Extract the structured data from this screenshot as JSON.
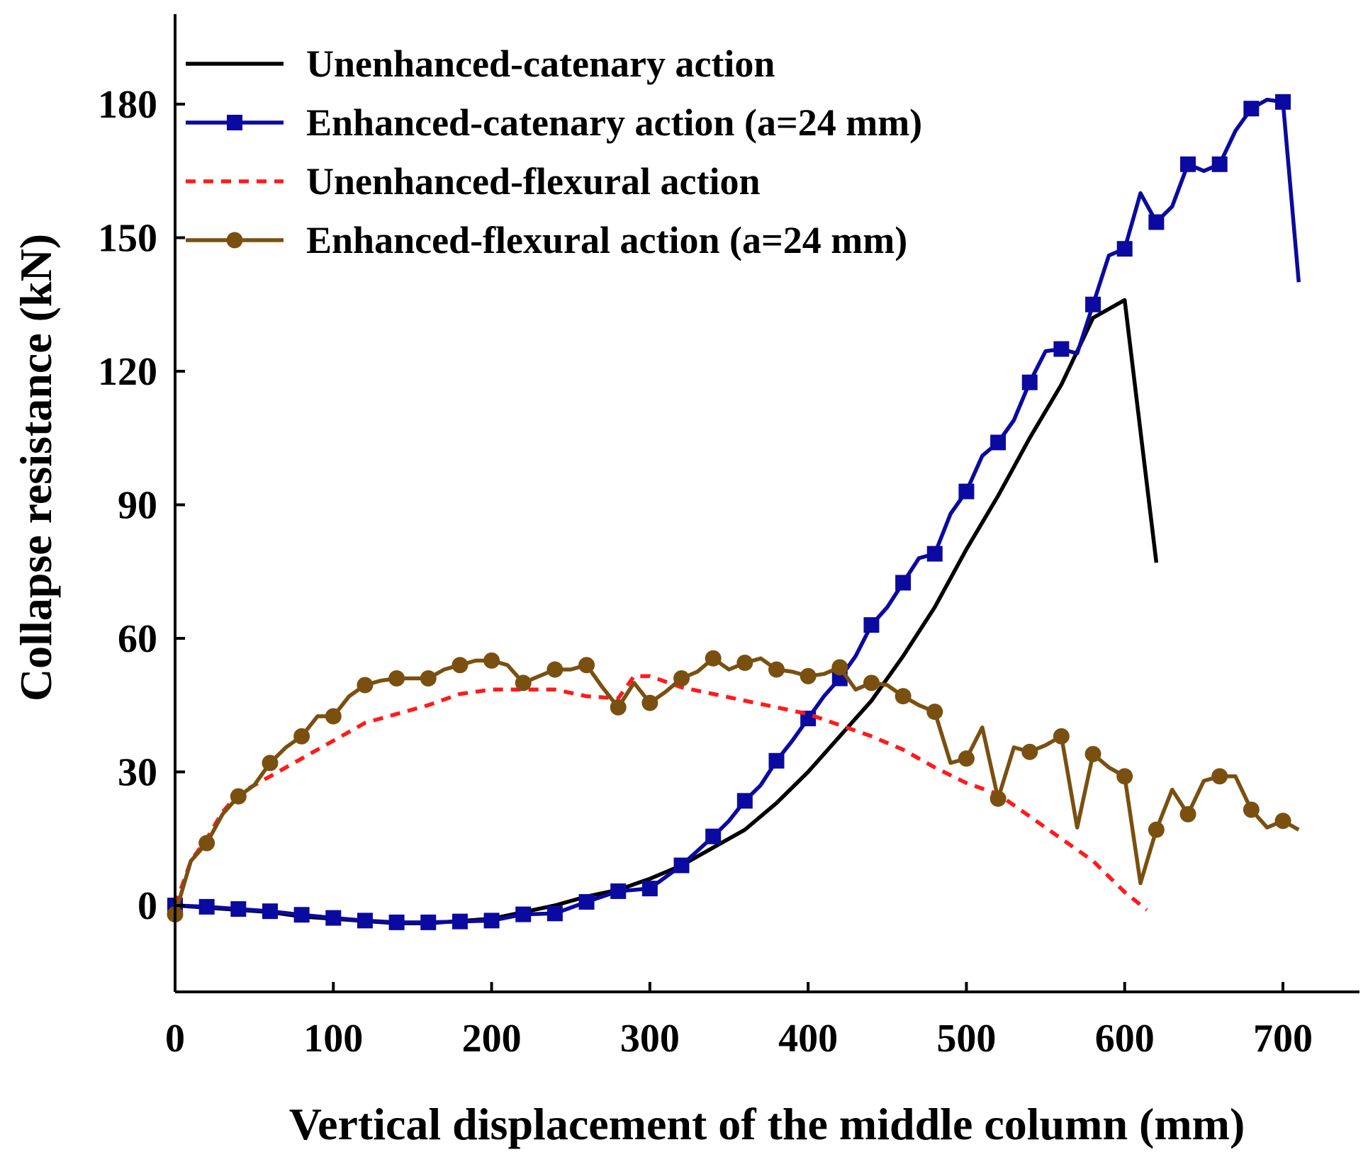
{
  "chart_data": {
    "type": "line",
    "title": "",
    "xlabel": "Vertical displacement of the middle column (mm)",
    "ylabel": "Collapse resistance (kN)",
    "xlim": [
      0,
      750
    ],
    "ylim": [
      -20,
      200
    ],
    "xticks": [
      0,
      100,
      200,
      300,
      400,
      500,
      600,
      700
    ],
    "yticks": [
      0,
      30,
      60,
      90,
      120,
      150,
      180
    ],
    "legend_position": "top-left",
    "series": [
      {
        "name": "Unenhanced-catenary action",
        "color": "#000000",
        "style": "solid",
        "marker": "none",
        "x": [
          0,
          20,
          40,
          60,
          80,
          100,
          120,
          140,
          160,
          180,
          200,
          220,
          240,
          260,
          280,
          300,
          320,
          340,
          360,
          380,
          400,
          420,
          440,
          460,
          480,
          500,
          520,
          540,
          560,
          580,
          600,
          620
        ],
        "y": [
          0,
          -0.5,
          -1,
          -1.5,
          -2.5,
          -3,
          -3.5,
          -4,
          -4,
          -3.5,
          -3,
          -1.5,
          0,
          2,
          3.5,
          6,
          9,
          13,
          17,
          23,
          30,
          38,
          46,
          56,
          67,
          80,
          92,
          105,
          117,
          132,
          136,
          77
        ]
      },
      {
        "name": "Enhanced-catenary action (a=24 mm)",
        "color": "#0a0aa0",
        "style": "solid",
        "marker": "square",
        "x": [
          0,
          20,
          40,
          60,
          80,
          100,
          120,
          140,
          160,
          180,
          200,
          220,
          240,
          260,
          280,
          300,
          320,
          340,
          350,
          360,
          370,
          380,
          390,
          400,
          410,
          420,
          430,
          440,
          450,
          460,
          470,
          480,
          490,
          500,
          510,
          520,
          530,
          540,
          550,
          560,
          570,
          580,
          590,
          600,
          610,
          620,
          630,
          640,
          650,
          660,
          670,
          680,
          690,
          700,
          710
        ],
        "y": [
          0,
          -0.3,
          -0.8,
          -1.3,
          -2.1,
          -2.8,
          -3.4,
          -3.8,
          -3.8,
          -3.6,
          -3.4,
          -2,
          -1.8,
          0.8,
          3.2,
          3.8,
          9,
          15.5,
          19,
          23.5,
          27,
          32.5,
          37,
          42,
          47,
          51,
          56,
          63,
          67,
          72.5,
          78,
          79,
          88,
          93,
          101,
          104,
          109,
          117.5,
          124.5,
          125,
          124,
          135,
          146,
          147.5,
          160,
          153.5,
          157,
          166.5,
          165,
          166.5,
          174,
          179,
          181,
          180.5,
          140
        ]
      },
      {
        "name": "Unenhanced-flexural action",
        "color": "#ff1a1a",
        "style": "dashed",
        "marker": "none",
        "x": [
          0,
          10,
          20,
          30,
          40,
          50,
          60,
          80,
          100,
          120,
          140,
          160,
          180,
          200,
          220,
          240,
          260,
          280,
          290,
          300,
          320,
          340,
          360,
          380,
          400,
          420,
          440,
          460,
          480,
          500,
          520,
          540,
          560,
          580,
          600,
          614
        ],
        "y": [
          0,
          10,
          15,
          21,
          25,
          27,
          29,
          33,
          37,
          41,
          43,
          45,
          47.5,
          48.5,
          48.5,
          48.5,
          47,
          46.5,
          51.5,
          51.5,
          49,
          47.5,
          46,
          44.5,
          43,
          40.5,
          38,
          35,
          31,
          27.5,
          25,
          20,
          15,
          10,
          3,
          -1
        ]
      },
      {
        "name": "Enhanced-flexural action (a=24 mm)",
        "color": "#7a5010",
        "style": "solid",
        "marker": "circle",
        "x": [
          0,
          10,
          20,
          30,
          40,
          50,
          60,
          70,
          80,
          90,
          100,
          110,
          120,
          130,
          140,
          150,
          160,
          170,
          180,
          190,
          200,
          210,
          220,
          230,
          240,
          250,
          260,
          270,
          280,
          290,
          300,
          310,
          320,
          330,
          340,
          350,
          360,
          370,
          380,
          390,
          400,
          410,
          420,
          430,
          440,
          450,
          460,
          470,
          480,
          490,
          500,
          510,
          520,
          530,
          540,
          550,
          560,
          570,
          580,
          590,
          600,
          610,
          620,
          630,
          640,
          650,
          660,
          670,
          680,
          690,
          700,
          710
        ],
        "y": [
          -2,
          10,
          14,
          20.5,
          24.5,
          27,
          32,
          35.5,
          38,
          42.5,
          42.5,
          47,
          49.5,
          50.5,
          51,
          51,
          51,
          53,
          54,
          55,
          55,
          54,
          50,
          51.5,
          53,
          53,
          54,
          49,
          44.5,
          50,
          45.5,
          48,
          51,
          52.5,
          55.5,
          53,
          54.5,
          55.5,
          53,
          52.5,
          51.5,
          52,
          53.5,
          48.5,
          50,
          49.5,
          47,
          45,
          43.5,
          32,
          33,
          40,
          24,
          35.5,
          34.5,
          36,
          38,
          17.5,
          34,
          31,
          29,
          5,
          17,
          26,
          20.5,
          28,
          29,
          29,
          21.5,
          17.5,
          19,
          17
        ]
      }
    ]
  }
}
